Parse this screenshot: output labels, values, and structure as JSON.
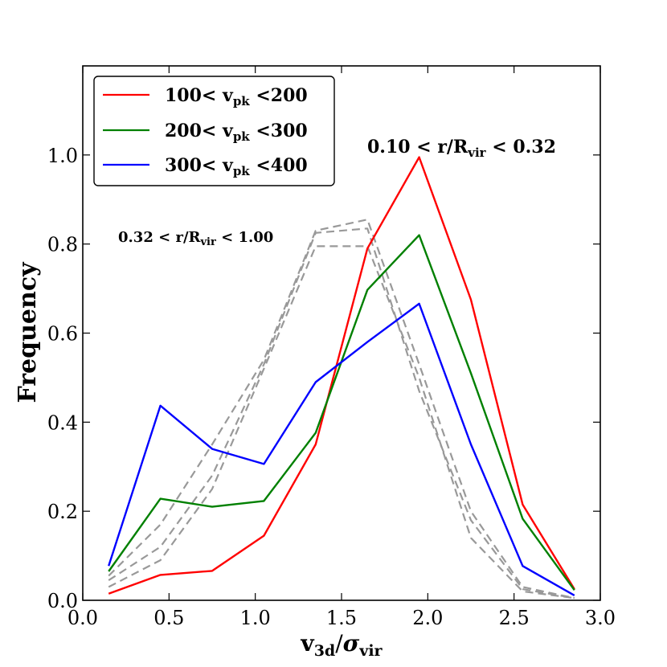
{
  "chart_data": {
    "type": "line",
    "title": "",
    "xlabel": {
      "main": "v",
      "main_sub": "3d",
      "slash": "/",
      "sigma": "σ",
      "sigma_sub": "vir"
    },
    "ylabel": "Frequency",
    "xlim": [
      0.0,
      3.0
    ],
    "ylim": [
      0.0,
      1.2
    ],
    "x_ticks": [
      0.0,
      0.5,
      1.0,
      1.5,
      2.0,
      2.5,
      3.0
    ],
    "x_tick_labels": [
      "0.0",
      "0.5",
      "1.0",
      "1.5",
      "2.0",
      "2.5",
      "3.0"
    ],
    "y_ticks": [
      0.0,
      0.2,
      0.4,
      0.6,
      0.8,
      1.0
    ],
    "y_tick_labels": [
      "0.0",
      "0.2",
      "0.4",
      "0.6",
      "0.8",
      "1.0"
    ],
    "grid": false,
    "legend_position": "top-left",
    "x": [
      0.15,
      0.45,
      0.75,
      1.05,
      1.35,
      1.65,
      1.95,
      2.25,
      2.55,
      2.85
    ],
    "series": [
      {
        "name": "100< v_pk <200",
        "legend": {
          "pre": "100< v",
          "sub": "pk",
          "post": " <200"
        },
        "color": "#ff0000",
        "style": "solid",
        "values": [
          0.015,
          0.057,
          0.066,
          0.145,
          0.35,
          0.79,
          0.995,
          0.675,
          0.215,
          0.025
        ]
      },
      {
        "name": "200< v_pk <300",
        "legend": {
          "pre": "200< v",
          "sub": "pk",
          "post": " <300"
        },
        "color": "#008000",
        "style": "solid",
        "values": [
          0.065,
          0.228,
          0.21,
          0.223,
          0.376,
          0.697,
          0.82,
          0.51,
          0.183,
          0.023
        ]
      },
      {
        "name": "300< v_pk <400",
        "legend": {
          "pre": "300< v",
          "sub": "pk",
          "post": " <400"
        },
        "color": "#0000ff",
        "style": "solid",
        "values": [
          0.077,
          0.437,
          0.34,
          0.306,
          0.49,
          0.58,
          0.666,
          0.35,
          0.077,
          0.011
        ]
      },
      {
        "name": "",
        "color": "#999999",
        "style": "dashed",
        "values": [
          0.03,
          0.09,
          0.25,
          0.52,
          0.795,
          0.795,
          0.5,
          0.14,
          0.02,
          0.005
        ]
      },
      {
        "name": "",
        "color": "#999999",
        "style": "dashed",
        "values": [
          0.045,
          0.12,
          0.28,
          0.53,
          0.825,
          0.835,
          0.47,
          0.18,
          0.025,
          0.005
        ]
      },
      {
        "name": "",
        "color": "#999999",
        "style": "dashed",
        "values": [
          0.055,
          0.17,
          0.35,
          0.54,
          0.83,
          0.855,
          0.53,
          0.2,
          0.03,
          0.005
        ]
      }
    ],
    "annotations": [
      {
        "id": "inner",
        "pre": "0.10 < r/R",
        "sub": "vir",
        "post": " < 0.32"
      },
      {
        "id": "outer",
        "pre": "0.32 < r/R",
        "sub": "vir",
        "post": " < 1.00"
      }
    ]
  }
}
